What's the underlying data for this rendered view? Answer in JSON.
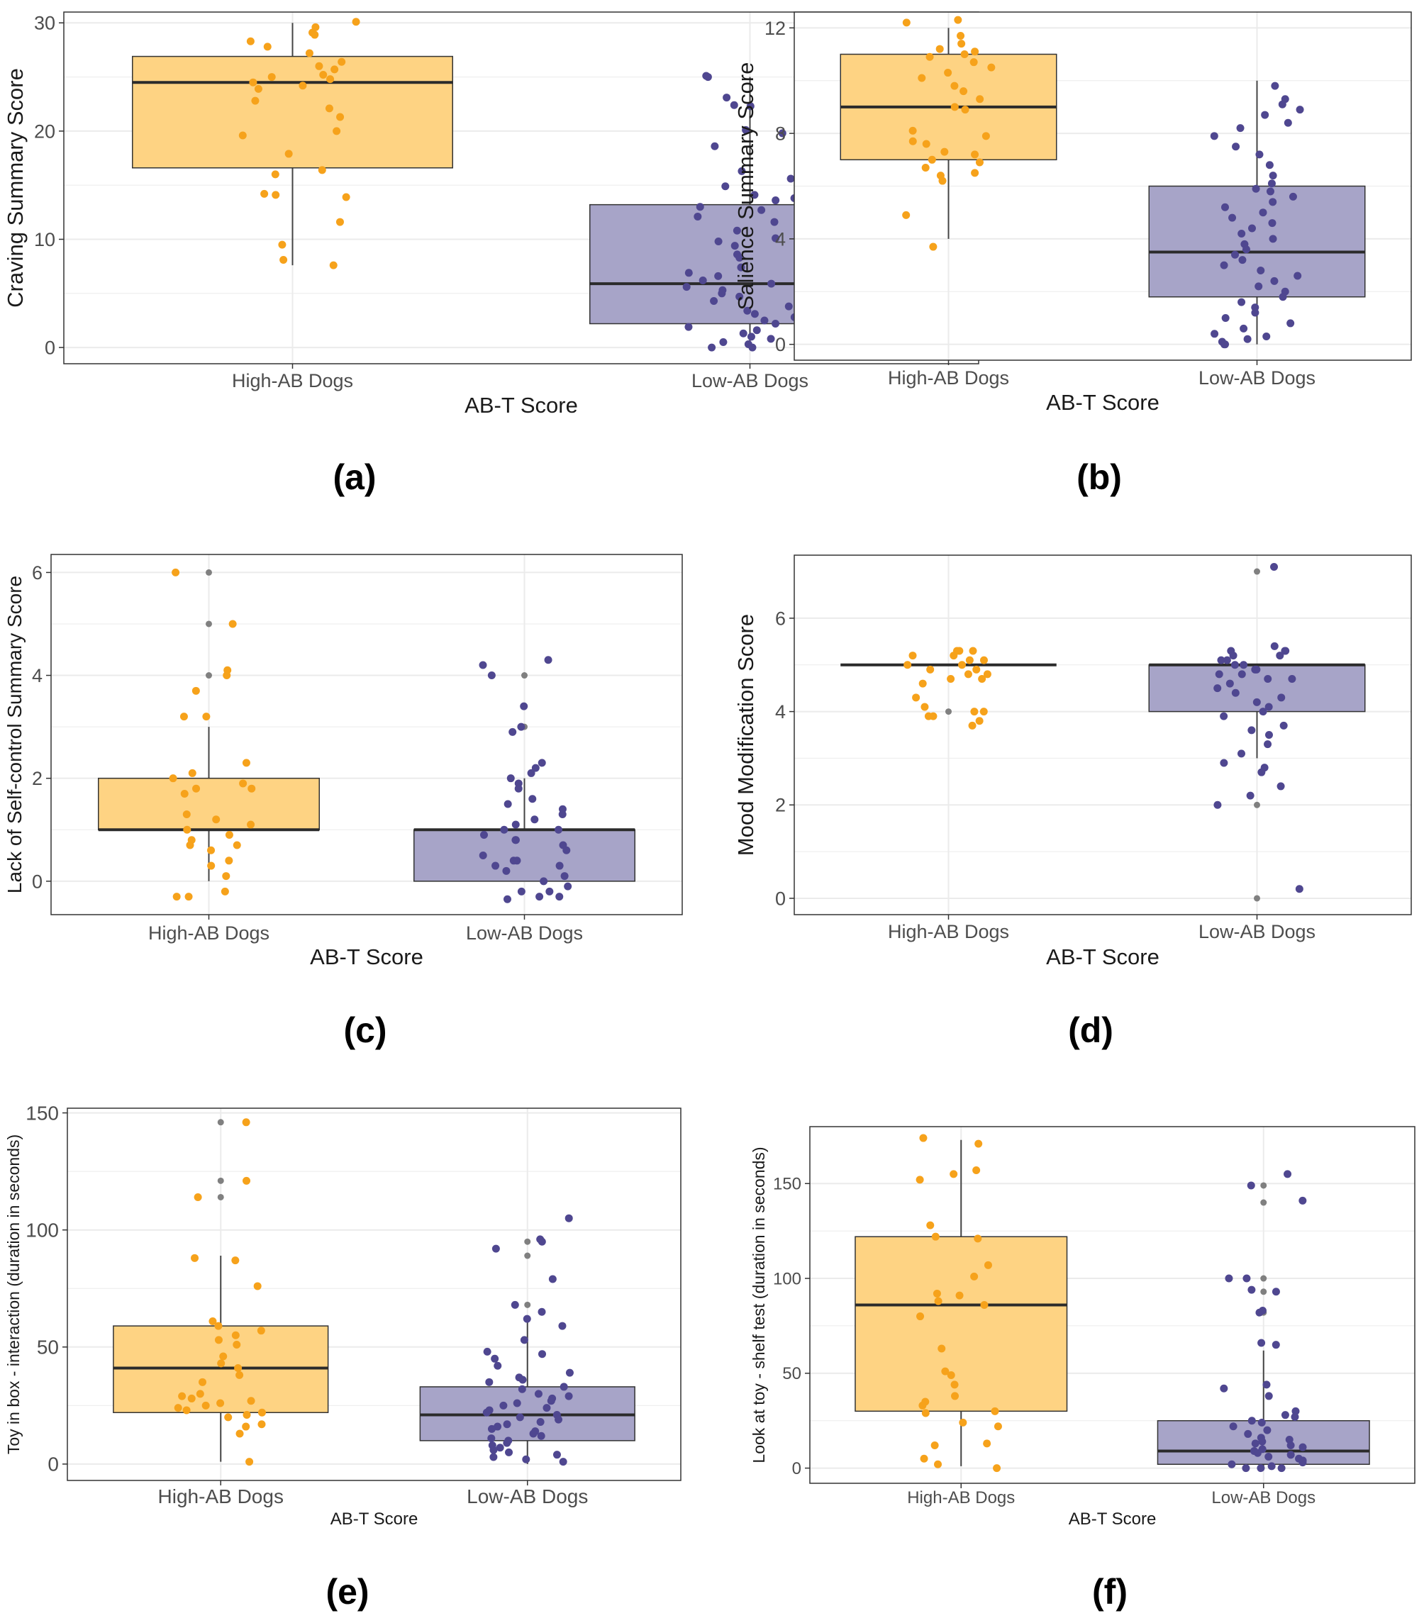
{
  "colors": {
    "high_fill": "#fed383",
    "low_fill": "#a7a4c8",
    "high_point": "#f6a21b",
    "low_point": "#4f4790",
    "outlier": "#808080",
    "grid": "#ebebeb",
    "frame": "#333333",
    "median": "#2b2b2b"
  },
  "chart_data": [
    {
      "type": "box",
      "panel_label": "(a)",
      "xlabel": "AB-T Score",
      "ylabel": "Craving Summary Score",
      "categories": [
        "High-AB Dogs",
        "Low-AB Dogs"
      ],
      "ylim": [
        -1.5,
        31
      ],
      "yticks": [
        0,
        10,
        20,
        30
      ],
      "grid": true,
      "legend": "none",
      "boxes": [
        {
          "group": "High-AB Dogs",
          "min": 7.6,
          "q1": 16.6,
          "median": 24.5,
          "q3": 26.9,
          "max": 30,
          "points": [
            29.1,
            27.8,
            27.2,
            30.1,
            29.6,
            28.9,
            28.3,
            26.4,
            26.0,
            25.7,
            25.2,
            25.0,
            24.8,
            24.5,
            24.2,
            23.9,
            22.8,
            22.1,
            21.3,
            20.0,
            19.6,
            17.9,
            16.4,
            16.0,
            14.2,
            14.1,
            13.9,
            11.6,
            9.5,
            8.1,
            7.6
          ]
        },
        {
          "group": "Low-AB Dogs",
          "min": 0,
          "q1": 2.2,
          "median": 5.9,
          "q3": 13.2,
          "max": 25,
          "points": [
            25.0,
            25.1,
            23.1,
            22.4,
            22.3,
            21.4,
            20.1,
            19.8,
            18.6,
            16.3,
            15.9,
            15.6,
            14.9,
            14.1,
            13.8,
            13.6,
            13.0,
            12.7,
            12.1,
            11.6,
            10.8,
            10.1,
            9.8,
            9.4,
            8.6,
            8.3,
            7.9,
            7.4,
            6.9,
            6.6,
            6.2,
            5.9,
            5.6,
            5.3,
            5.0,
            4.7,
            4.3,
            3.8,
            3.4,
            3.1,
            2.8,
            2.5,
            2.2,
            1.9,
            1.6,
            1.3,
            1.0,
            0.8,
            0.5,
            0.3,
            0.1,
            0.0,
            0.0,
            0.0
          ]
        }
      ]
    },
    {
      "type": "box",
      "panel_label": "(b)",
      "xlabel": "AB-T Score",
      "ylabel": "Salience Summary Score",
      "categories": [
        "High-AB Dogs",
        "Low-AB Dogs"
      ],
      "ylim": [
        -0.6,
        12.6
      ],
      "yticks": [
        0,
        4,
        8,
        12
      ],
      "grid": true,
      "legend": "none",
      "boxes": [
        {
          "group": "High-AB Dogs",
          "min": 4,
          "q1": 7,
          "median": 9,
          "q3": 11,
          "max": 12,
          "points": [
            12.3,
            12.2,
            11.7,
            11.4,
            11.2,
            11.1,
            11.0,
            10.9,
            10.7,
            10.5,
            10.3,
            10.1,
            9.8,
            9.6,
            9.3,
            9.0,
            8.9,
            8.1,
            7.9,
            7.7,
            7.6,
            7.3,
            7.2,
            7.0,
            6.9,
            6.7,
            6.5,
            6.4,
            6.2,
            4.9,
            3.7
          ]
        },
        {
          "group": "Low-AB Dogs",
          "min": 0,
          "q1": 1.8,
          "median": 3.5,
          "q3": 6,
          "max": 10,
          "points": [
            9.8,
            9.3,
            9.1,
            8.9,
            8.7,
            8.4,
            8.2,
            7.9,
            7.5,
            7.2,
            6.8,
            6.4,
            6.1,
            5.9,
            5.8,
            5.6,
            5.4,
            5.2,
            5.0,
            4.8,
            4.6,
            4.4,
            4.2,
            4.0,
            3.8,
            3.6,
            3.4,
            3.2,
            3.0,
            2.8,
            2.6,
            2.4,
            2.2,
            2.0,
            1.8,
            1.6,
            1.4,
            1.2,
            1.0,
            0.8,
            0.6,
            0.4,
            0.3,
            0.2,
            0.1,
            0.0,
            0.0
          ]
        }
      ]
    },
    {
      "type": "box",
      "panel_label": "(c)",
      "xlabel": "AB-T Score",
      "ylabel": "Lack of Self-control Summary Score",
      "categories": [
        "High-AB Dogs",
        "Low-AB Dogs"
      ],
      "ylim": [
        -0.65,
        6.35
      ],
      "yticks": [
        0,
        2,
        4,
        6
      ],
      "grid": true,
      "legend": "none",
      "boxes": [
        {
          "group": "High-AB Dogs",
          "min": 0,
          "q1": 1,
          "median": 1,
          "q3": 2,
          "max": 3,
          "outliers": [
            4,
            5,
            6
          ],
          "points": [
            6.0,
            5.0,
            4.1,
            4.0,
            3.7,
            3.2,
            3.2,
            2.3,
            2.1,
            2.0,
            1.9,
            1.8,
            1.8,
            1.7,
            1.3,
            1.2,
            1.1,
            1.0,
            0.9,
            0.8,
            0.7,
            0.7,
            0.6,
            0.4,
            0.3,
            0.1,
            -0.2,
            -0.3,
            -0.3
          ]
        },
        {
          "group": "Low-AB Dogs",
          "min": 0,
          "q1": 0,
          "median": 1,
          "q3": 1,
          "max": 2,
          "outliers": [
            3,
            4
          ],
          "points": [
            4.3,
            4.2,
            4.0,
            3.4,
            3.0,
            2.9,
            2.3,
            2.2,
            2.1,
            2.0,
            1.9,
            1.8,
            1.6,
            1.5,
            1.4,
            1.3,
            1.2,
            1.1,
            1.0,
            1.0,
            0.9,
            0.8,
            0.8,
            0.7,
            0.6,
            0.5,
            0.4,
            0.4,
            0.3,
            0.3,
            0.2,
            0.1,
            0.0,
            -0.1,
            -0.2,
            -0.2,
            -0.3,
            -0.3,
            -0.35
          ]
        }
      ]
    },
    {
      "type": "box",
      "panel_label": "(d)",
      "xlabel": "AB-T Score",
      "ylabel": "Mood Modification Score",
      "categories": [
        "High-AB Dogs",
        "Low-AB Dogs"
      ],
      "ylim": [
        -0.35,
        7.35
      ],
      "yticks": [
        0,
        2,
        4,
        6
      ],
      "grid": true,
      "legend": "none",
      "boxes": [
        {
          "group": "High-AB Dogs",
          "min": 5,
          "q1": 5,
          "median": 5,
          "q3": 5,
          "max": 5,
          "outliers": [
            4
          ],
          "points": [
            5.3,
            5.3,
            5.3,
            5.2,
            5.2,
            5.1,
            5.1,
            5.0,
            5.0,
            4.9,
            4.9,
            4.8,
            4.8,
            4.7,
            4.7,
            4.6,
            4.3,
            4.1,
            4.0,
            4.0,
            3.9,
            3.9,
            3.8,
            3.7
          ]
        },
        {
          "group": "Low-AB Dogs",
          "min": 3,
          "q1": 4,
          "median": 5,
          "q3": 5,
          "max": 5,
          "outliers": [
            2,
            0,
            7
          ],
          "points": [
            7.1,
            5.4,
            5.3,
            5.3,
            5.3,
            5.2,
            5.2,
            5.1,
            5.1,
            5.0,
            5.0,
            4.9,
            4.9,
            4.8,
            4.8,
            4.7,
            4.7,
            4.6,
            4.5,
            4.4,
            4.3,
            4.2,
            4.1,
            4.0,
            3.9,
            3.7,
            3.6,
            3.5,
            3.3,
            3.1,
            2.9,
            2.8,
            2.7,
            2.4,
            2.2,
            2.0,
            0.2
          ]
        }
      ]
    },
    {
      "type": "box",
      "panel_label": "(e)",
      "xlabel": "AB-T Score",
      "ylabel": "Toy in box - interaction (duration in seconds)",
      "categories": [
        "High-AB Dogs",
        "Low-AB Dogs"
      ],
      "ylim": [
        -7,
        152
      ],
      "yticks": [
        0,
        50,
        100,
        150
      ],
      "grid": true,
      "legend": "none",
      "boxes": [
        {
          "group": "High-AB Dogs",
          "min": 1,
          "q1": 22,
          "median": 41,
          "q3": 59,
          "max": 89,
          "outliers": [
            114,
            121,
            146
          ],
          "points": [
            146,
            121,
            114,
            88,
            87,
            76,
            61,
            59,
            57,
            55,
            53,
            51,
            46,
            43,
            41,
            38,
            35,
            30,
            29,
            28,
            27,
            26,
            25,
            24,
            23,
            22,
            21,
            20,
            17,
            16,
            13,
            1
          ]
        },
        {
          "group": "Low-AB Dogs",
          "min": 0,
          "q1": 10,
          "median": 21,
          "q3": 33,
          "max": 62,
          "outliers": [
            68,
            89,
            95
          ],
          "points": [
            105,
            96,
            95,
            92,
            79,
            68,
            65,
            62,
            59,
            53,
            48,
            47,
            45,
            42,
            39,
            37,
            36,
            35,
            33,
            32,
            30,
            29,
            28,
            27,
            26,
            25,
            24,
            23,
            22,
            21,
            20,
            19,
            18,
            17,
            16,
            15,
            14,
            13,
            12,
            11,
            10,
            9,
            8,
            7,
            6,
            5,
            4,
            3,
            2,
            1
          ]
        }
      ]
    },
    {
      "type": "box",
      "panel_label": "(f)",
      "xlabel": "AB-T Score",
      "ylabel": "Look at toy - shelf test (duration in seconds)",
      "categories": [
        "High-AB Dogs",
        "Low-AB Dogs"
      ],
      "ylim": [
        -8,
        180
      ],
      "yticks": [
        0,
        50,
        100,
        150
      ],
      "grid": true,
      "legend": "none",
      "boxes": [
        {
          "group": "High-AB Dogs",
          "min": 1,
          "q1": 30,
          "median": 86,
          "q3": 122,
          "max": 173,
          "points": [
            174,
            171,
            157,
            155,
            152,
            128,
            122,
            121,
            107,
            101,
            92,
            91,
            88,
            86,
            80,
            63,
            51,
            49,
            44,
            38,
            35,
            33,
            30,
            29,
            24,
            22,
            13,
            12,
            5,
            2,
            0
          ]
        },
        {
          "group": "Low-AB Dogs",
          "min": 0,
          "q1": 2,
          "median": 9,
          "q3": 25,
          "max": 62,
          "outliers": [
            82,
            93,
            100,
            140,
            149
          ],
          "points": [
            155,
            149,
            141,
            100,
            100,
            94,
            93,
            83,
            82,
            66,
            65,
            44,
            42,
            38,
            30,
            28,
            27,
            25,
            24,
            22,
            20,
            18,
            16,
            15,
            14,
            13,
            12,
            11,
            10,
            9,
            8,
            7,
            6,
            5,
            4,
            3,
            2,
            1,
            0,
            0,
            0
          ]
        }
      ]
    }
  ]
}
